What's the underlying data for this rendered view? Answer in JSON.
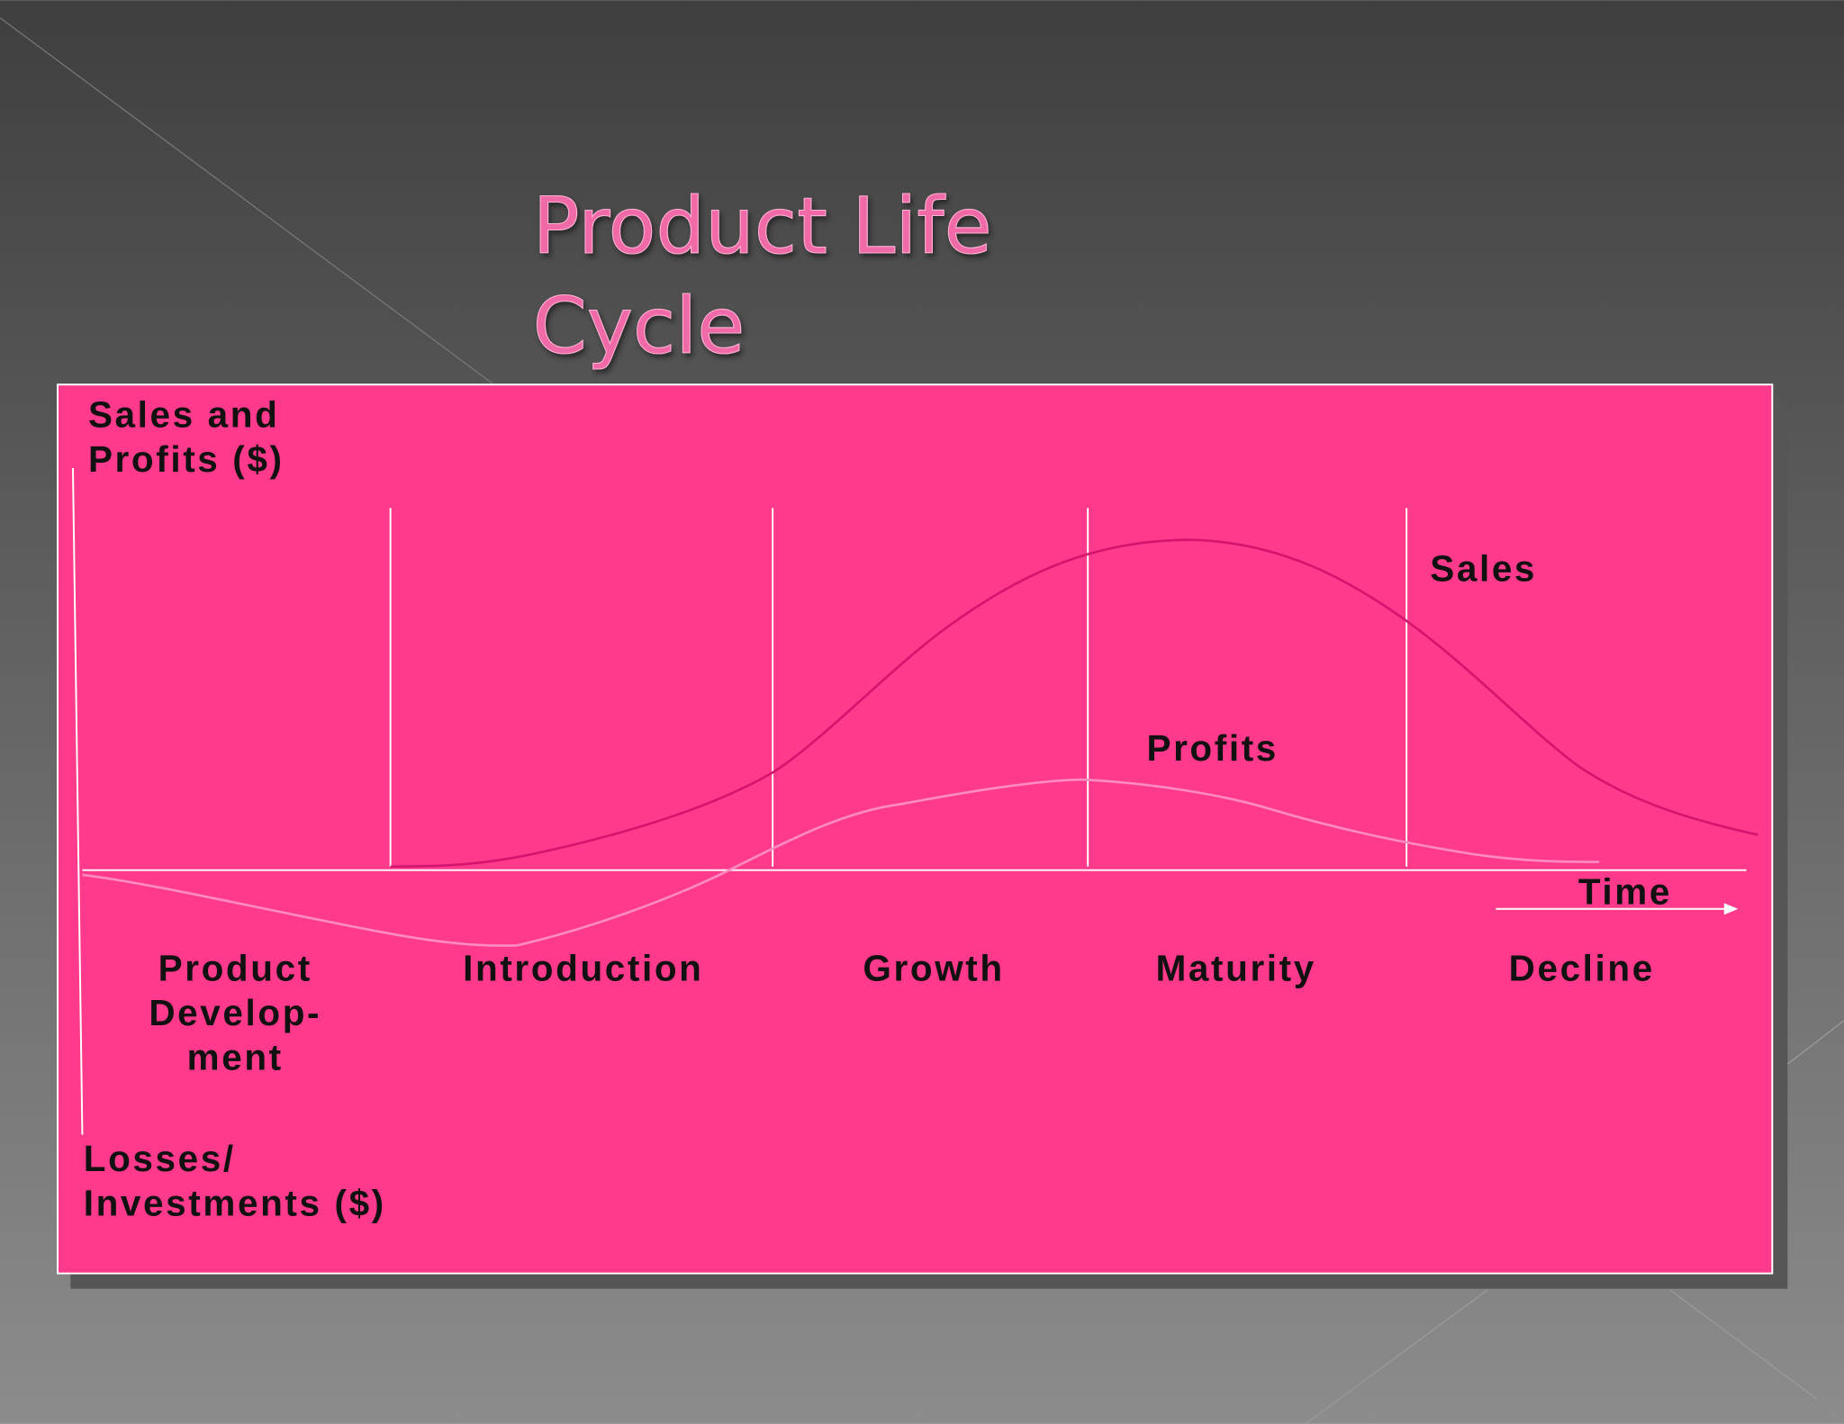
{
  "title": [
    "Product Life",
    "Cycle"
  ],
  "y_axis_top": [
    "Sales and",
    "Profits ($)"
  ],
  "y_axis_bottom": [
    "Losses/",
    "Investments ($)"
  ],
  "x_axis": "Time",
  "curve_labels": {
    "sales": "Sales",
    "profits": "Profits"
  },
  "stages": [
    [
      "Product",
      "Develop-",
      "ment"
    ],
    [
      "Introduction"
    ],
    [
      "Growth"
    ],
    [
      "Maturity"
    ],
    [
      "Decline"
    ]
  ]
}
